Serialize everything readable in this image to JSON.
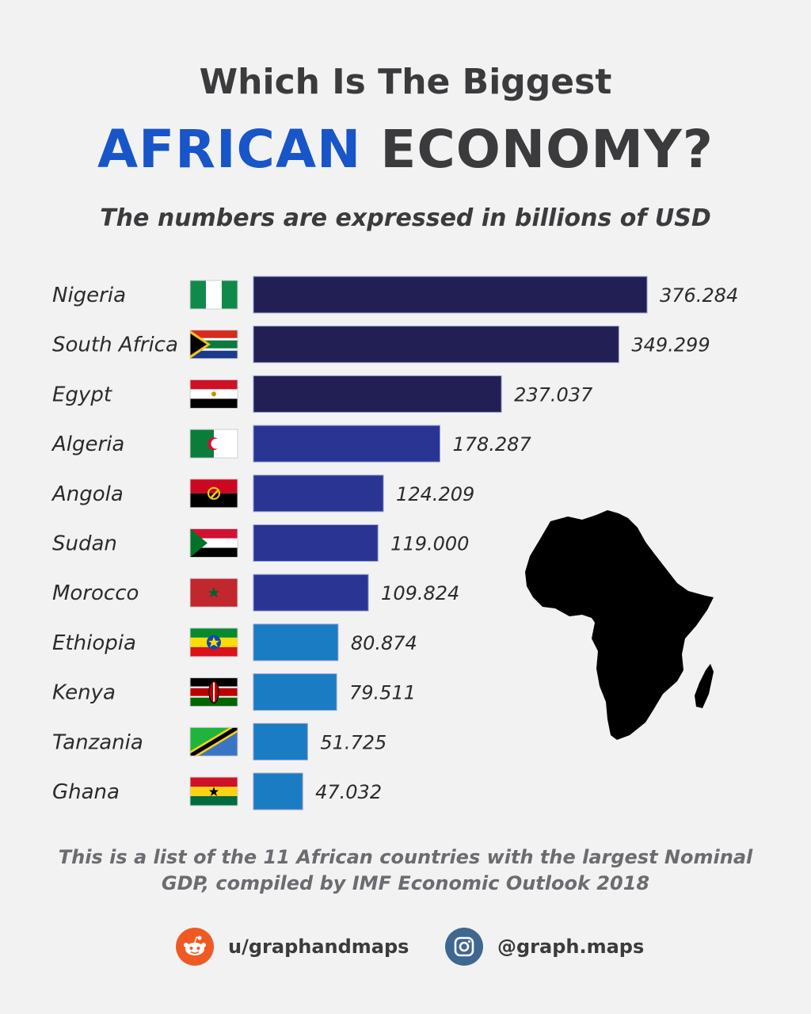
{
  "header": {
    "title_line1": "Which Is The Biggest",
    "title_accent": "AFRICAN",
    "title_rest": "ECONOMY?",
    "subtitle": "The numbers are expressed in billions of USD"
  },
  "chart_data": {
    "type": "bar",
    "orientation": "horizontal",
    "categories": [
      "Nigeria",
      "South Africa",
      "Egypt",
      "Algeria",
      "Angola",
      "Sudan",
      "Morocco",
      "Ethiopia",
      "Kenya",
      "Tanzania",
      "Ghana"
    ],
    "values": [
      376.284,
      349.299,
      237.037,
      178.287,
      124.209,
      119.0,
      109.824,
      80.874,
      79.511,
      51.725,
      47.032
    ],
    "value_labels": [
      "376.284",
      "349.299",
      "237.037",
      "178.287",
      "124.209",
      "119.000",
      "109.824",
      "80.874",
      "79.511",
      "51.725",
      "47.032"
    ],
    "bar_colors": [
      "#221f55",
      "#221f55",
      "#221f55",
      "#2a3593",
      "#2a3593",
      "#2a3593",
      "#2a3593",
      "#1a7cc3",
      "#1a7cc3",
      "#1a7cc3",
      "#1a7cc3"
    ],
    "flags": [
      "nigeria-flag",
      "south-africa-flag",
      "egypt-flag",
      "algeria-flag",
      "angola-flag",
      "sudan-flag",
      "morocco-flag",
      "ethiopia-flag",
      "kenya-flag",
      "tanzania-flag",
      "ghana-flag"
    ],
    "xlim": [
      0,
      376.284
    ],
    "grid": false,
    "legend": "none"
  },
  "footnote": {
    "line1": "This is a list of the 11 African countries with the largest Nominal",
    "line2": "GDP, compiled by IMF Economic Outlook 2018"
  },
  "social": {
    "reddit_handle": "u/graphandmaps",
    "reddit_icon": "reddit-icon",
    "instagram_handle": "@graph.maps",
    "instagram_icon": "instagram-icon",
    "reddit_color": "#ef5a24",
    "instagram_color": "#3e6791"
  }
}
